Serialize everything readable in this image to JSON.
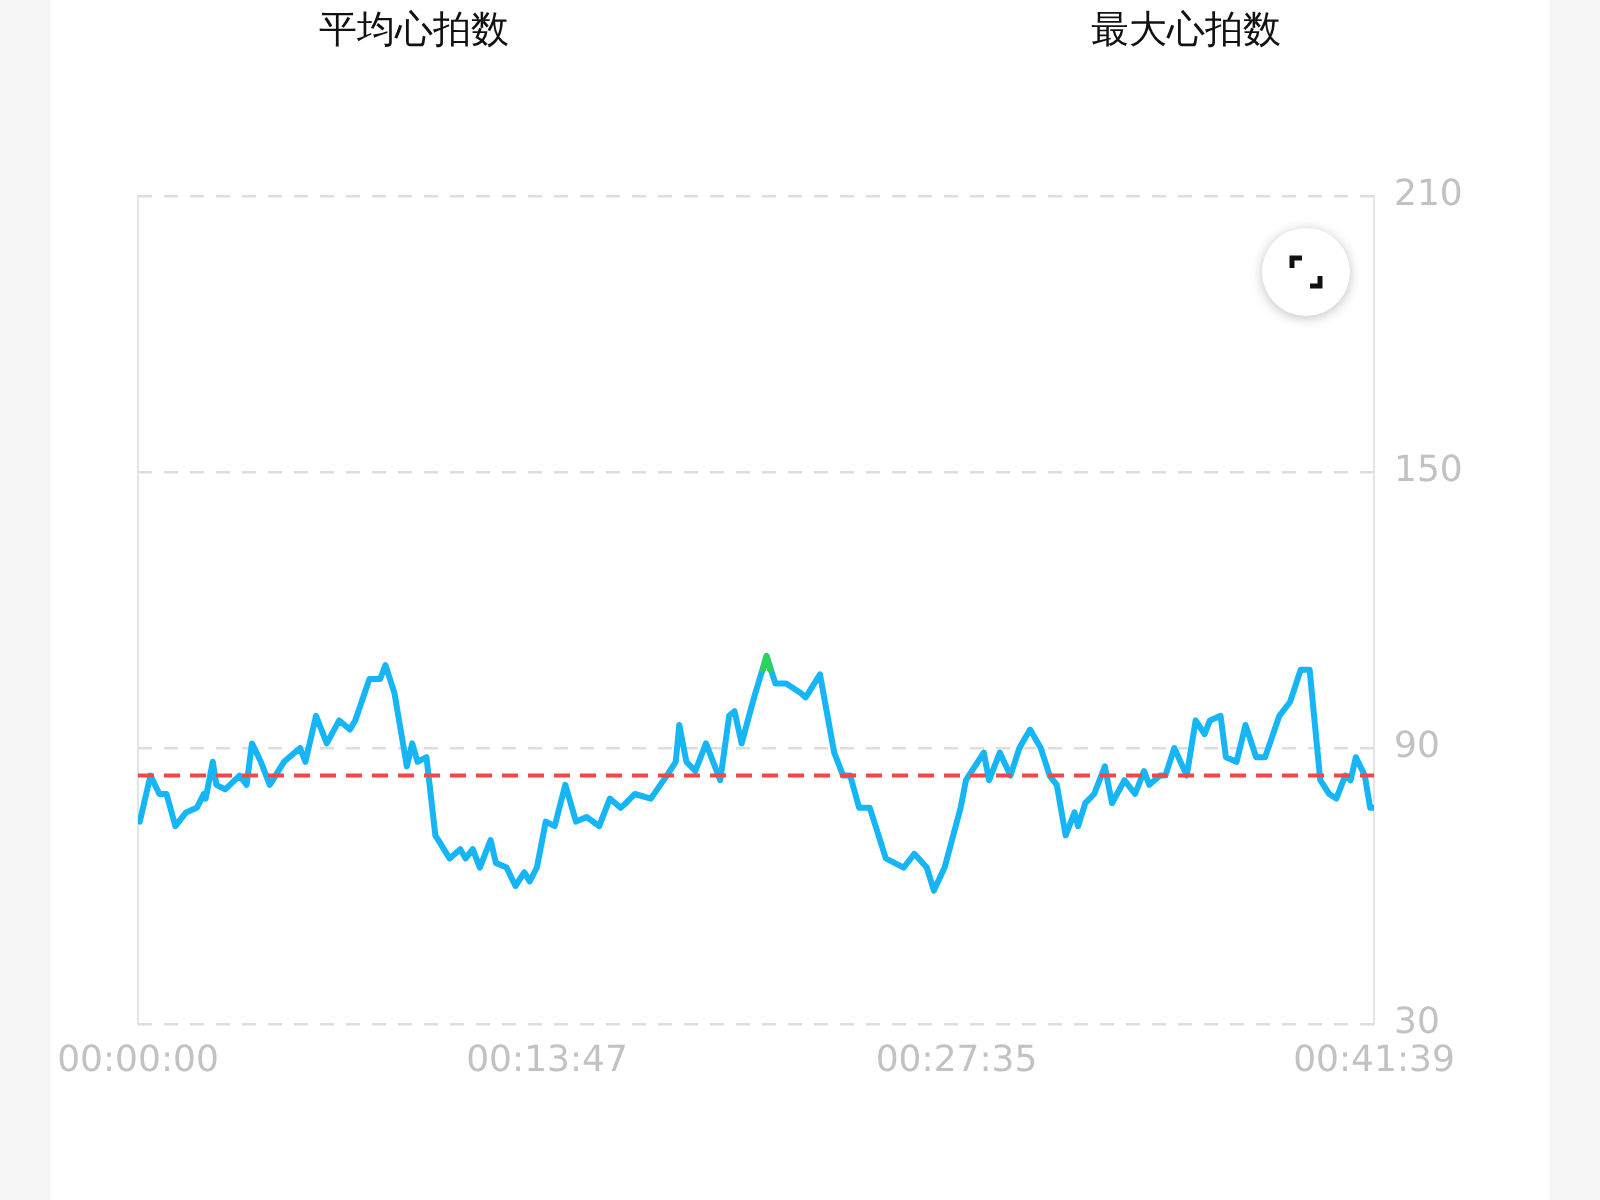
{
  "chart_data": {
    "type": "line",
    "annotations": [
      "平均心拍数",
      "最大心拍数"
    ],
    "xlim": [
      0,
      0.694167
    ],
    "xticks": [
      {
        "value": 0,
        "label": "00:00:00"
      },
      {
        "value": 0.229722,
        "label": "00:13:47"
      },
      {
        "value": 0.459722,
        "label": "00:27:35"
      },
      {
        "value": 0.694167,
        "label": "00:41:39"
      }
    ],
    "ylim": [
      30,
      210
    ],
    "yticks": [
      30,
      90,
      150,
      210
    ],
    "grid": "y",
    "legend": false,
    "marker": "none",
    "line_style": "solid",
    "ref_lines": [
      {
        "axis": "y",
        "value": 84,
        "color": "#f04848",
        "line_style": "dashed"
      }
    ],
    "series": [
      {
        "color": "#16b6f6",
        "x": [
          0.001,
          0.007,
          0.012,
          0.016,
          0.021,
          0.027,
          0.033,
          0.037,
          0.038,
          0.042,
          0.044,
          0.049,
          0.057,
          0.061,
          0.064,
          0.069,
          0.074,
          0.082,
          0.091,
          0.094,
          0.1,
          0.106,
          0.113,
          0.119,
          0.122,
          0.13,
          0.136,
          0.139,
          0.144,
          0.151,
          0.154,
          0.157,
          0.162,
          0.167,
          0.175,
          0.181,
          0.184,
          0.188,
          0.192,
          0.198,
          0.201,
          0.207,
          0.212,
          0.217,
          0.22,
          0.224,
          0.229,
          0.234,
          0.24,
          0.246,
          0.252,
          0.259,
          0.265,
          0.271,
          0.274,
          0.279,
          0.288,
          0.297,
          0.302,
          0.304,
          0.308,
          0.313,
          0.319,
          0.327,
          0.332,
          0.335,
          0.339,
          0.346,
          0.353,
          0.358,
          0.364,
          0.372,
          0.375,
          0.383,
          0.391,
          0.396,
          0.4,
          0.405,
          0.411,
          0.42,
          0.43,
          0.436,
          0.443,
          0.447,
          0.453,
          0.462,
          0.465,
          0.475,
          0.478,
          0.484,
          0.49,
          0.495,
          0.501,
          0.507,
          0.512,
          0.516,
          0.521,
          0.526,
          0.528,
          0.532,
          0.537,
          0.543,
          0.547,
          0.554,
          0.56,
          0.565,
          0.568,
          0.574,
          0.577,
          0.582,
          0.589,
          0.594,
          0.599,
          0.602,
          0.608,
          0.611,
          0.617,
          0.622,
          0.628,
          0.633,
          0.641,
          0.647,
          0.653,
          0.658,
          0.664,
          0.669,
          0.673,
          0.678,
          0.681,
          0.684,
          0.689,
          0.692,
          0.694
        ],
        "values": [
          74,
          84,
          80,
          80,
          73,
          76,
          77,
          80,
          79,
          87,
          82,
          81,
          84,
          82,
          91,
          87,
          82,
          87,
          90,
          87,
          97,
          91,
          96,
          94,
          96,
          105,
          105,
          108,
          102,
          86,
          91,
          87,
          88,
          71,
          66,
          68,
          66,
          68,
          64,
          70,
          65,
          64,
          60,
          63,
          61,
          64,
          74,
          73,
          82,
          74,
          75,
          73,
          79,
          77,
          78,
          80,
          79,
          84,
          87,
          95,
          87,
          85,
          91,
          83,
          97,
          98,
          91,
          101,
          110,
          104,
          104,
          102,
          101,
          106,
          89,
          84,
          84,
          77,
          77,
          66,
          64,
          67,
          64,
          59,
          64,
          77,
          83,
          89,
          83,
          89,
          84,
          90,
          94,
          90,
          84,
          82,
          71,
          76,
          73,
          78,
          80,
          86,
          78,
          83,
          80,
          85,
          82,
          84,
          84,
          90,
          84,
          96,
          93,
          96,
          97,
          88,
          87,
          95,
          88,
          88,
          97,
          100,
          107,
          107,
          83,
          80,
          79,
          84,
          83,
          88,
          84,
          77,
          77
        ]
      },
      {
        "color": "#2ad35a",
        "x": [
          0.351,
          0.353,
          0.355
        ],
        "values": [
          107,
          110,
          107
        ]
      }
    ]
  }
}
